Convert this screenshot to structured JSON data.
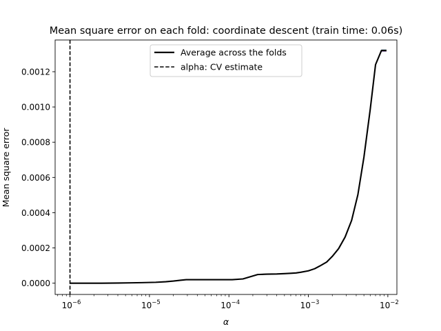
{
  "chart_data": {
    "type": "line",
    "title": "Mean square error on each fold: coordinate descent (train time: 0.06s)",
    "xlabel": "α",
    "ylabel": "Mean square error",
    "xscale": "log",
    "xlim": [
      6.5e-07,
      0.013
    ],
    "ylim": [
      -6.4e-05,
      0.00138
    ],
    "grid": false,
    "legend_position": "top-center",
    "x_ticks": [
      {
        "value": 1e-06,
        "base": "10",
        "exp": "−6"
      },
      {
        "value": 1e-05,
        "base": "10",
        "exp": "−5"
      },
      {
        "value": 0.0001,
        "base": "10",
        "exp": "−4"
      },
      {
        "value": 0.001,
        "base": "10",
        "exp": "−3"
      },
      {
        "value": 0.01,
        "base": "10",
        "exp": "−2"
      }
    ],
    "y_ticks": [
      {
        "value": 0.0,
        "label": "0.0000"
      },
      {
        "value": 0.0002,
        "label": "0.0002"
      },
      {
        "value": 0.0004,
        "label": "0.0004"
      },
      {
        "value": 0.0006,
        "label": "0.0006"
      },
      {
        "value": 0.0008,
        "label": "0.0008"
      },
      {
        "value": 0.001,
        "label": "0.0010"
      },
      {
        "value": 0.0012,
        "label": "0.0012"
      }
    ],
    "series": [
      {
        "name": "Average across the folds",
        "color": "#000000",
        "style": "solid",
        "x": [
          1e-06,
          1.5e-06,
          2.5e-06,
          4e-06,
          6e-06,
          8e-06,
          1.2e-05,
          1.6e-05,
          2e-05,
          2.5e-05,
          2.9e-05,
          4e-05,
          6e-05,
          8e-05,
          0.00011,
          0.00015,
          0.00023,
          0.0003,
          0.0004,
          0.0005,
          0.0006,
          0.0007,
          0.0008,
          0.001,
          0.0012,
          0.0014,
          0.0017,
          0.002,
          0.0024,
          0.0029,
          0.0035,
          0.0042,
          0.005,
          0.006,
          0.007,
          0.0083,
          0.0096
        ],
        "y": [
          0.0,
          0.0,
          0.0,
          1e-06,
          2e-06,
          3e-06,
          5e-06,
          8e-06,
          1.2e-05,
          1.7e-05,
          2e-05,
          2e-05,
          2e-05,
          2e-05,
          2e-05,
          2.4e-05,
          4.9e-05,
          5.1e-05,
          5.2e-05,
          5.4e-05,
          5.6e-05,
          5.8e-05,
          6.2e-05,
          7e-05,
          8.2e-05,
          9.8e-05,
          0.00012,
          0.000152,
          0.000196,
          0.000262,
          0.000356,
          0.000503,
          0.000715,
          0.000986,
          0.00124,
          0.00132,
          0.00132
        ]
      },
      {
        "name": "alpha: CV estimate",
        "color": "#000000",
        "style": "dashed",
        "vline_x": 1e-06
      }
    ],
    "fold_marks": {
      "colors": [
        "#1f77b4",
        "#ff7f0e",
        "#2ca02c",
        "#d62728",
        "#9467bd"
      ],
      "x": [
        0.0083,
        0.0096
      ],
      "y": 0.00132
    }
  }
}
